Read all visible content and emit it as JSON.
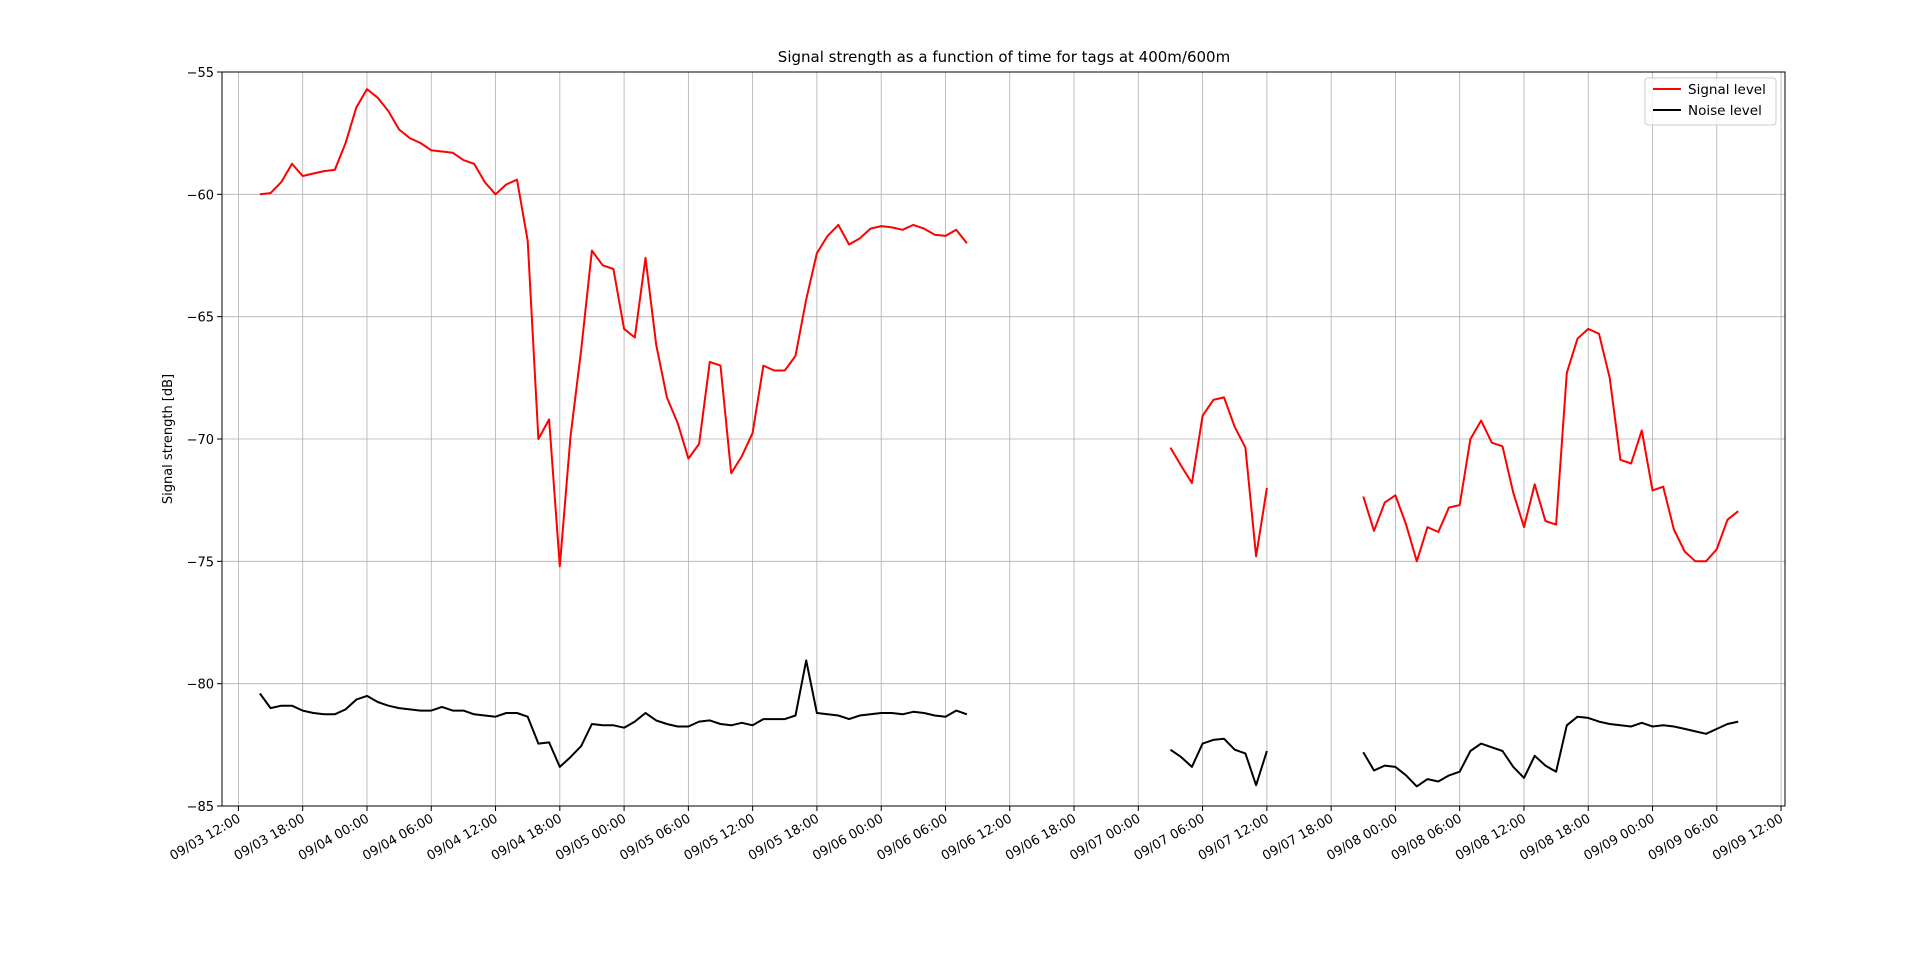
{
  "chart_data": {
    "type": "line",
    "title": "Signal strength as a function of time for tags at 400m/600m",
    "xlabel": "",
    "ylabel": "Signal strength [dB]",
    "ylim": [
      -85,
      -55
    ],
    "xlim": [
      "09/03 12:00",
      "09/09 12:00"
    ],
    "y_ticks": [
      -85,
      -80,
      -75,
      -70,
      -65,
      -60,
      -55
    ],
    "y_tick_labels": [
      "−85",
      "−80",
      "−75",
      "−70",
      "−65",
      "−60",
      "−55"
    ],
    "x_tick_labels": [
      "09/03 12:00",
      "09/03 18:00",
      "09/04 00:00",
      "09/04 06:00",
      "09/04 12:00",
      "09/04 18:00",
      "09/05 00:00",
      "09/05 06:00",
      "09/05 12:00",
      "09/05 18:00",
      "09/06 00:00",
      "09/06 06:00",
      "09/06 12:00",
      "09/06 18:00",
      "09/07 00:00",
      "09/07 06:00",
      "09/07 12:00",
      "09/07 18:00",
      "09/08 00:00",
      "09/08 06:00",
      "09/08 12:00",
      "09/08 18:00",
      "09/09 00:00",
      "09/09 06:00",
      "09/09 12:00"
    ],
    "grid": true,
    "legend_position": "top-right",
    "series": [
      {
        "name": "Signal level",
        "color": "#ff0000",
        "segments": [
          [
            [
              "09/03 14:00",
              -60.0
            ],
            [
              "09/03 15:00",
              -59.95
            ],
            [
              "09/03 16:00",
              -59.5
            ],
            [
              "09/03 17:00",
              -58.75
            ],
            [
              "09/03 18:00",
              -59.25
            ],
            [
              "09/03 19:00",
              -59.15
            ],
            [
              "09/03 20:00",
              -59.05
            ],
            [
              "09/03 21:00",
              -59.0
            ],
            [
              "09/03 22:00",
              -57.9
            ],
            [
              "09/03 23:00",
              -56.45
            ],
            [
              "09/04 00:00",
              -55.7
            ],
            [
              "09/04 01:00",
              -56.05
            ],
            [
              "09/04 02:00",
              -56.6
            ],
            [
              "09/04 03:00",
              -57.35
            ],
            [
              "09/04 04:00",
              -57.7
            ],
            [
              "09/04 05:00",
              -57.9
            ],
            [
              "09/04 06:00",
              -58.2
            ],
            [
              "09/04 07:00",
              -58.25
            ],
            [
              "09/04 08:00",
              -58.3
            ],
            [
              "09/04 09:00",
              -58.6
            ],
            [
              "09/04 10:00",
              -58.75
            ],
            [
              "09/04 11:00",
              -59.5
            ],
            [
              "09/04 12:00",
              -60.0
            ],
            [
              "09/04 13:00",
              -59.6
            ],
            [
              "09/04 14:00",
              -59.4
            ],
            [
              "09/04 15:00",
              -61.9
            ],
            [
              "09/04 16:00",
              -70.0
            ],
            [
              "09/04 17:00",
              -69.2
            ],
            [
              "09/04 18:00",
              -75.2
            ],
            [
              "09/04 19:00",
              -69.9
            ],
            [
              "09/04 20:00",
              -66.35
            ],
            [
              "09/04 21:00",
              -62.3
            ],
            [
              "09/04 22:00",
              -62.9
            ],
            [
              "09/04 23:00",
              -63.05
            ],
            [
              "09/05 00:00",
              -65.5
            ],
            [
              "09/05 01:00",
              -65.85
            ],
            [
              "09/05 02:00",
              -62.6
            ],
            [
              "09/05 03:00",
              -66.15
            ],
            [
              "09/05 04:00",
              -68.3
            ],
            [
              "09/05 05:00",
              -69.35
            ],
            [
              "09/05 06:00",
              -70.8
            ],
            [
              "09/05 07:00",
              -70.2
            ],
            [
              "09/05 08:00",
              -66.85
            ],
            [
              "09/05 09:00",
              -67.0
            ],
            [
              "09/05 10:00",
              -71.4
            ],
            [
              "09/05 11:00",
              -70.7
            ],
            [
              "09/05 12:00",
              -69.75
            ],
            [
              "09/05 13:00",
              -67.0
            ],
            [
              "09/05 14:00",
              -67.2
            ],
            [
              "09/05 15:00",
              -67.2
            ],
            [
              "09/05 16:00",
              -66.6
            ],
            [
              "09/05 17:00",
              -64.3
            ],
            [
              "09/05 18:00",
              -62.4
            ],
            [
              "09/05 19:00",
              -61.7
            ],
            [
              "09/05 20:00",
              -61.25
            ],
            [
              "09/05 21:00",
              -62.05
            ],
            [
              "09/05 22:00",
              -61.8
            ],
            [
              "09/05 23:00",
              -61.4
            ],
            [
              "09/06 00:00",
              -61.3
            ],
            [
              "09/06 01:00",
              -61.35
            ],
            [
              "09/06 02:00",
              -61.45
            ],
            [
              "09/06 03:00",
              -61.25
            ],
            [
              "09/06 04:00",
              -61.4
            ],
            [
              "09/06 05:00",
              -61.65
            ],
            [
              "09/06 06:00",
              -61.7
            ],
            [
              "09/06 07:00",
              -61.45
            ],
            [
              "09/06 08:00",
              -62.0
            ]
          ],
          [
            [
              "09/07 03:00",
              -70.35
            ],
            [
              "09/07 04:00",
              -71.1
            ],
            [
              "09/07 05:00",
              -71.8
            ],
            [
              "09/07 06:00",
              -69.05
            ],
            [
              "09/07 07:00",
              -68.4
            ],
            [
              "09/07 08:00",
              -68.3
            ],
            [
              "09/07 09:00",
              -69.5
            ],
            [
              "09/07 10:00",
              -70.35
            ],
            [
              "09/07 11:00",
              -74.8
            ],
            [
              "09/07 12:00",
              -72.0
            ]
          ],
          [
            [
              "09/07 21:00",
              -72.35
            ],
            [
              "09/07 22:00",
              -73.75
            ],
            [
              "09/07 23:00",
              -72.6
            ],
            [
              "09/08 00:00",
              -72.3
            ],
            [
              "09/08 01:00",
              -73.5
            ],
            [
              "09/08 02:00",
              -75.0
            ],
            [
              "09/08 03:00",
              -73.6
            ],
            [
              "09/08 04:00",
              -73.8
            ],
            [
              "09/08 05:00",
              -72.8
            ],
            [
              "09/08 06:00",
              -72.7
            ],
            [
              "09/08 07:00",
              -70.0
            ],
            [
              "09/08 08:00",
              -69.25
            ],
            [
              "09/08 09:00",
              -70.15
            ],
            [
              "09/08 10:00",
              -70.3
            ],
            [
              "09/08 11:00",
              -72.2
            ],
            [
              "09/08 12:00",
              -73.6
            ],
            [
              "09/08 13:00",
              -71.85
            ],
            [
              "09/08 14:00",
              -73.35
            ],
            [
              "09/08 15:00",
              -73.5
            ],
            [
              "09/08 16:00",
              -67.3
            ],
            [
              "09/08 17:00",
              -65.9
            ],
            [
              "09/08 18:00",
              -65.5
            ],
            [
              "09/08 19:00",
              -65.7
            ],
            [
              "09/08 20:00",
              -67.5
            ],
            [
              "09/08 21:00",
              -70.85
            ],
            [
              "09/08 22:00",
              -71.0
            ],
            [
              "09/08 23:00",
              -69.65
            ],
            [
              "09/09 00:00",
              -72.1
            ],
            [
              "09/09 01:00",
              -71.95
            ],
            [
              "09/09 02:00",
              -73.7
            ],
            [
              "09/09 03:00",
              -74.6
            ],
            [
              "09/09 04:00",
              -75.0
            ],
            [
              "09/09 05:00",
              -75.0
            ],
            [
              "09/09 06:00",
              -74.5
            ],
            [
              "09/09 07:00",
              -73.3
            ],
            [
              "09/09 08:00",
              -72.95
            ]
          ]
        ]
      },
      {
        "name": "Noise level",
        "color": "#000000",
        "segments": [
          [
            [
              "09/03 14:00",
              -80.4
            ],
            [
              "09/03 15:00",
              -81.0
            ],
            [
              "09/03 16:00",
              -80.9
            ],
            [
              "09/03 17:00",
              -80.9
            ],
            [
              "09/03 18:00",
              -81.1
            ],
            [
              "09/03 19:00",
              -81.2
            ],
            [
              "09/03 20:00",
              -81.25
            ],
            [
              "09/03 21:00",
              -81.25
            ],
            [
              "09/03 22:00",
              -81.05
            ],
            [
              "09/03 23:00",
              -80.65
            ],
            [
              "09/04 00:00",
              -80.5
            ],
            [
              "09/04 01:00",
              -80.75
            ],
            [
              "09/04 02:00",
              -80.9
            ],
            [
              "09/04 03:00",
              -81.0
            ],
            [
              "09/04 04:00",
              -81.05
            ],
            [
              "09/04 05:00",
              -81.1
            ],
            [
              "09/04 06:00",
              -81.1
            ],
            [
              "09/04 07:00",
              -80.95
            ],
            [
              "09/04 08:00",
              -81.1
            ],
            [
              "09/04 09:00",
              -81.1
            ],
            [
              "09/04 10:00",
              -81.25
            ],
            [
              "09/04 11:00",
              -81.3
            ],
            [
              "09/04 12:00",
              -81.35
            ],
            [
              "09/04 13:00",
              -81.2
            ],
            [
              "09/04 14:00",
              -81.2
            ],
            [
              "09/04 15:00",
              -81.35
            ],
            [
              "09/04 16:00",
              -82.45
            ],
            [
              "09/04 17:00",
              -82.4
            ],
            [
              "09/04 18:00",
              -83.4
            ],
            [
              "09/04 19:00",
              -83.0
            ],
            [
              "09/04 20:00",
              -82.55
            ],
            [
              "09/04 21:00",
              -81.65
            ],
            [
              "09/04 22:00",
              -81.7
            ],
            [
              "09/04 23:00",
              -81.7
            ],
            [
              "09/05 00:00",
              -81.8
            ],
            [
              "09/05 01:00",
              -81.55
            ],
            [
              "09/05 02:00",
              -81.2
            ],
            [
              "09/05 03:00",
              -81.5
            ],
            [
              "09/05 04:00",
              -81.65
            ],
            [
              "09/05 05:00",
              -81.75
            ],
            [
              "09/05 06:00",
              -81.75
            ],
            [
              "09/05 07:00",
              -81.55
            ],
            [
              "09/05 08:00",
              -81.5
            ],
            [
              "09/05 09:00",
              -81.65
            ],
            [
              "09/05 10:00",
              -81.7
            ],
            [
              "09/05 11:00",
              -81.6
            ],
            [
              "09/05 12:00",
              -81.7
            ],
            [
              "09/05 13:00",
              -81.45
            ],
            [
              "09/05 14:00",
              -81.45
            ],
            [
              "09/05 15:00",
              -81.45
            ],
            [
              "09/05 16:00",
              -81.3
            ],
            [
              "09/05 17:00",
              -79.05
            ],
            [
              "09/05 18:00",
              -81.2
            ],
            [
              "09/05 19:00",
              -81.25
            ],
            [
              "09/05 20:00",
              -81.3
            ],
            [
              "09/05 21:00",
              -81.45
            ],
            [
              "09/05 22:00",
              -81.3
            ],
            [
              "09/05 23:00",
              -81.25
            ],
            [
              "09/06 00:00",
              -81.2
            ],
            [
              "09/06 01:00",
              -81.2
            ],
            [
              "09/06 02:00",
              -81.25
            ],
            [
              "09/06 03:00",
              -81.15
            ],
            [
              "09/06 04:00",
              -81.2
            ],
            [
              "09/06 05:00",
              -81.3
            ],
            [
              "09/06 06:00",
              -81.35
            ],
            [
              "09/06 07:00",
              -81.1
            ],
            [
              "09/06 08:00",
              -81.25
            ]
          ],
          [
            [
              "09/07 03:00",
              -82.7
            ],
            [
              "09/07 04:00",
              -83.0
            ],
            [
              "09/07 05:00",
              -83.4
            ],
            [
              "09/07 06:00",
              -82.45
            ],
            [
              "09/07 07:00",
              -82.3
            ],
            [
              "09/07 08:00",
              -82.25
            ],
            [
              "09/07 09:00",
              -82.7
            ],
            [
              "09/07 10:00",
              -82.85
            ],
            [
              "09/07 11:00",
              -84.15
            ],
            [
              "09/07 12:00",
              -82.75
            ]
          ],
          [
            [
              "09/07 21:00",
              -82.8
            ],
            [
              "09/07 22:00",
              -83.55
            ],
            [
              "09/07 23:00",
              -83.35
            ],
            [
              "09/08 00:00",
              -83.4
            ],
            [
              "09/08 01:00",
              -83.75
            ],
            [
              "09/08 02:00",
              -84.2
            ],
            [
              "09/08 03:00",
              -83.9
            ],
            [
              "09/08 04:00",
              -84.0
            ],
            [
              "09/08 05:00",
              -83.75
            ],
            [
              "09/08 06:00",
              -83.6
            ],
            [
              "09/08 07:00",
              -82.75
            ],
            [
              "09/08 08:00",
              -82.45
            ],
            [
              "09/08 09:00",
              -82.6
            ],
            [
              "09/08 10:00",
              -82.75
            ],
            [
              "09/08 11:00",
              -83.4
            ],
            [
              "09/08 12:00",
              -83.85
            ],
            [
              "09/08 13:00",
              -82.95
            ],
            [
              "09/08 14:00",
              -83.35
            ],
            [
              "09/08 15:00",
              -83.6
            ],
            [
              "09/08 16:00",
              -81.7
            ],
            [
              "09/08 17:00",
              -81.35
            ],
            [
              "09/08 18:00",
              -81.4
            ],
            [
              "09/08 19:00",
              -81.55
            ],
            [
              "09/08 20:00",
              -81.65
            ],
            [
              "09/08 21:00",
              -81.7
            ],
            [
              "09/08 22:00",
              -81.75
            ],
            [
              "09/08 23:00",
              -81.6
            ],
            [
              "09/09 00:00",
              -81.75
            ],
            [
              "09/09 01:00",
              -81.7
            ],
            [
              "09/09 02:00",
              -81.75
            ],
            [
              "09/09 03:00",
              -81.85
            ],
            [
              "09/09 04:00",
              -81.95
            ],
            [
              "09/09 05:00",
              -82.05
            ],
            [
              "09/09 06:00",
              -81.85
            ],
            [
              "09/09 07:00",
              -81.65
            ],
            [
              "09/09 08:00",
              -81.55
            ]
          ]
        ]
      }
    ]
  }
}
